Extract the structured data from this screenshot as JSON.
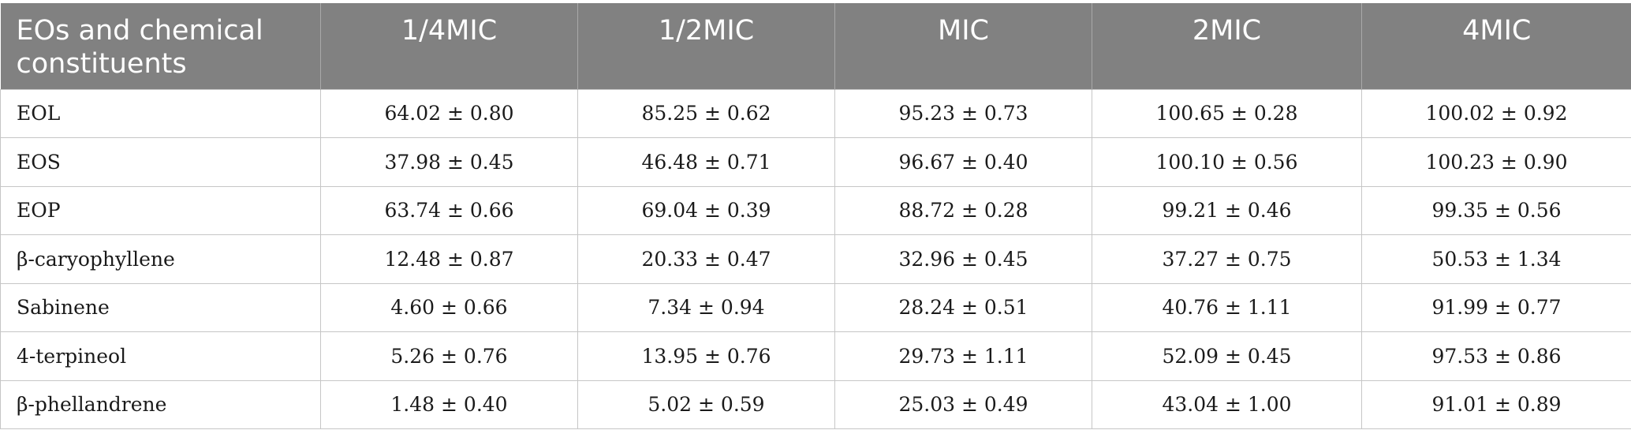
{
  "table": {
    "headers": [
      "EOs and chemical constituents",
      "1/4MIC",
      "1/2MIC",
      "MIC",
      "2MIC",
      "4MIC"
    ],
    "rows": [
      [
        "EOL",
        "64.02 ± 0.80",
        "85.25 ± 0.62",
        "95.23 ± 0.73",
        "100.65 ± 0.28",
        "100.02 ± 0.92"
      ],
      [
        "EOS",
        "37.98 ± 0.45",
        "46.48 ± 0.71",
        "96.67 ± 0.40",
        "100.10 ± 0.56",
        "100.23 ± 0.90"
      ],
      [
        "EOP",
        "63.74 ± 0.66",
        "69.04 ± 0.39",
        "88.72 ± 0.28",
        "99.21 ± 0.46",
        "99.35 ± 0.56"
      ],
      [
        "β-caryophyllene",
        "12.48 ± 0.87",
        "20.33 ± 0.47",
        "32.96 ± 0.45",
        "37.27 ± 0.75",
        "50.53 ± 1.34"
      ],
      [
        "Sabinene",
        "4.60 ± 0.66",
        "7.34 ± 0.94",
        "28.24 ± 0.51",
        "40.76 ± 1.11",
        "91.99 ± 0.77"
      ],
      [
        "4-terpineol",
        "5.26 ± 0.76",
        "13.95 ± 0.76",
        "29.73 ± 1.11",
        "52.09 ± 0.45",
        "97.53 ± 0.86"
      ],
      [
        "β-phellandrene",
        "1.48 ± 0.40",
        "5.02 ± 0.59",
        "25.03 ± 0.49",
        "43.04 ± 1.00",
        "91.01 ± 0.89"
      ]
    ]
  },
  "colors": {
    "header_bg": "#818181",
    "header_text": "#ffffff",
    "grid": "#c6c6c6",
    "cell_text": "#1a1a1a"
  }
}
